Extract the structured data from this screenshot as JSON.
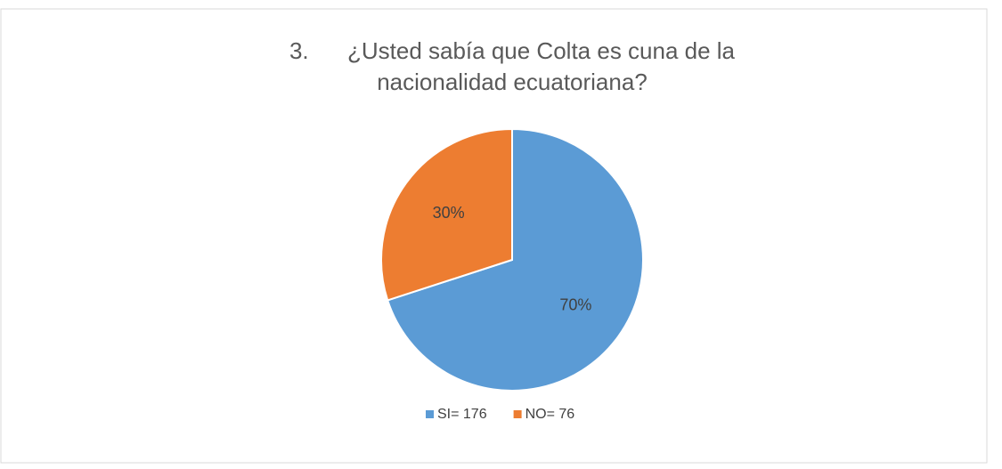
{
  "chart_data": {
    "type": "pie",
    "title": "3.      ¿Usted sabía que Colta es cuna de la nacionalidad ecuatoriana?",
    "categories": [
      "SI= 176",
      "NO= 76"
    ],
    "values": [
      70,
      30
    ],
    "value_labels": [
      "70%",
      "30%"
    ],
    "colors": [
      "#5b9bd5",
      "#ed7d31"
    ],
    "legend": "bottom"
  }
}
